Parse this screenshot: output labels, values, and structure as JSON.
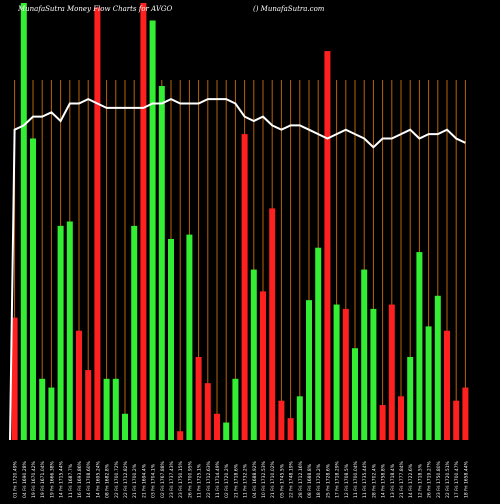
{
  "header": {
    "title_left": "MunafaSutra  Money Flow  Charts for AVGO",
    "title_right": "() MunafaSutra.com"
  },
  "colors": {
    "background": "#000000",
    "up": "#33ee33",
    "down": "#ff2020",
    "grid": "#b8640a",
    "line": "#ffffff",
    "label": "#ffffff"
  },
  "chart_data": {
    "type": "bar",
    "title": "MunafaSutra  Money Flow  Charts for AVGO",
    "subtitle": "() MunafaSutra.com",
    "xlabel": "",
    "ylabel": "",
    "ylim": [
      0,
      100
    ],
    "grid": true,
    "categories": [
      "1",
      "2",
      "3",
      "4",
      "5",
      "6",
      "7",
      "8",
      "9",
      "10",
      "11",
      "12",
      "13",
      "14",
      "15",
      "16",
      "17",
      "18",
      "19",
      "20",
      "21",
      "22",
      "23",
      "24",
      "25",
      "26",
      "27",
      "28",
      "29",
      "30",
      "31",
      "32",
      "33",
      "34",
      "35",
      "36",
      "37",
      "38",
      "39",
      "40",
      "41",
      "42",
      "43",
      "44",
      "45",
      "46",
      "47",
      "48",
      "49",
      "50"
    ],
    "x_tick_labels": [
      "01 Fri 1720.49%",
      "04 Fri 1690.28%",
      "19 Fri 1670.42%",
      "19 Fri 1671.04%",
      "19 Fri 1666.38%",
      "14 Fri 1715.44%",
      "11 Fri 1687.7%",
      "16 Fri 1693.86%",
      "14 Fri 1708.60%",
      "14 Fri 1695.24%",
      "08 Fri 1682.8%",
      "22 Fri 1700.72%",
      "22 Fri 1712.82%",
      "21 Fri 1700.2%",
      "21 Fri 1694.4%",
      "03 Fri 1704.1%",
      "02 Fri 1767.88%",
      "23 Fri 1737.43%",
      "23 Fri 1750.15%",
      "26 Fri 1700.95%",
      "11 Fri 1725.1%",
      "22 Fri 1712.63%",
      "11 Fri 1714.49%",
      "02 Fri 1720.2%",
      "21 Fri 1718.6%",
      "11 Fri 1732.2%",
      "04 Fri 1688.92%",
      "10 Fri 1732.53%",
      "21 Fri 1710.02%",
      "05 Fri 1745.5%",
      "22 Fri 1748.19%",
      "28 Fri 1712.16%",
      "08 Fri 1688.8%",
      "18 Fri 1720.2%",
      "25 Fri 1728.6%",
      "17 Fri 1718.29%",
      "12 Fri 1708.5%",
      "11 Fri 1700.04%",
      "11 Fri 1735.44%",
      "28 Fri 1702.4%",
      "14 Fri 1758.8%",
      "13 Fri 1718.4%",
      "21 Fri 1777.84%",
      "14 Fri 1722.6%",
      "12 Fri 1718.5%",
      "26 Fri 1719.27%",
      "23 Fri 1750.80%",
      "22 Fri 1720.51%",
      "17 Fri 1700.47%",
      "18 Fri 1658.44%"
    ],
    "bar_colors": [
      "red",
      "green",
      "green",
      "green",
      "green",
      "green",
      "green",
      "red",
      "red",
      "red",
      "green",
      "green",
      "green",
      "green",
      "red",
      "green",
      "green",
      "green",
      "red",
      "green",
      "red",
      "red",
      "red",
      "green",
      "green",
      "red",
      "green",
      "red",
      "red",
      "red",
      "red",
      "green",
      "green",
      "green",
      "red",
      "green",
      "red",
      "green",
      "green",
      "green",
      "red",
      "red",
      "red",
      "green",
      "green",
      "green",
      "green",
      "red",
      "red",
      "red"
    ],
    "series": [
      {
        "type": "bar",
        "values": [
          28,
          100,
          69,
          14,
          12,
          49,
          50,
          25,
          16,
          99,
          14,
          14,
          6,
          49,
          100,
          96,
          81,
          46,
          2,
          47,
          19,
          13,
          6,
          4,
          14,
          70,
          39,
          34,
          53,
          9,
          5,
          10,
          32,
          44,
          89,
          31,
          30,
          21,
          39,
          30,
          8,
          31,
          10,
          19,
          43,
          26,
          33,
          25,
          9,
          12
        ]
      },
      {
        "type": "line",
        "values": [
          71,
          72,
          74,
          74,
          75,
          73,
          77,
          77,
          78,
          77,
          76,
          76,
          76,
          76,
          76,
          77,
          77,
          78,
          77,
          77,
          77,
          78,
          78,
          78,
          77,
          74,
          73,
          74,
          72,
          71,
          72,
          72,
          71,
          70,
          69,
          70,
          71,
          70,
          69,
          67,
          69,
          69,
          70,
          71,
          69,
          70,
          70,
          71,
          69,
          68
        ]
      }
    ]
  }
}
